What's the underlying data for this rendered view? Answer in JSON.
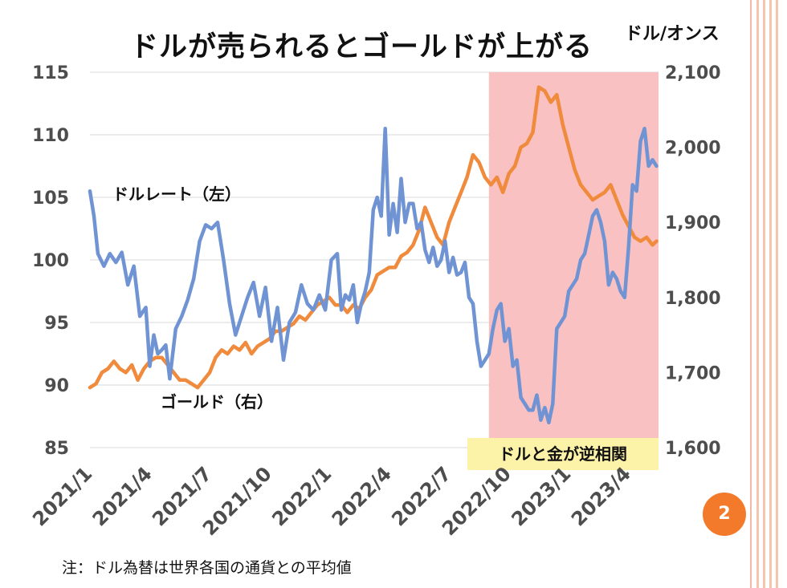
{
  "slide": {
    "title": "ドルが売られるとゴールドが上がる",
    "page_number": "2",
    "footnote": "注：ドル為替は世界各国の通貨との平均値"
  },
  "colors": {
    "dollar": "#7094d3",
    "gold": "#f08a3c",
    "shade": "#f9c1c1",
    "shade_label_bg": "#fdf3a8",
    "badge": "#f47a2b"
  },
  "chart_data": {
    "type": "line",
    "title": "ドルが売られるとゴールドが上がる",
    "y_left": {
      "lim": [
        85,
        115
      ],
      "ticks": [
        "85",
        "90",
        "95",
        "100",
        "105",
        "110",
        "115"
      ]
    },
    "y_right": {
      "label": "ドル/オンス",
      "lim": [
        1600,
        2100
      ],
      "ticks": [
        "1,600",
        "1,700",
        "1,800",
        "1,900",
        "2,000",
        "2,100"
      ]
    },
    "x_ticks": [
      "2021/1",
      "2021/4",
      "2021/7",
      "2021/10",
      "2022/1",
      "2022/4",
      "2022/7",
      "2022/10",
      "2023/1",
      "2023/4"
    ],
    "grid": true,
    "shaded_region": {
      "x_start": "2022/9",
      "x_end": "2023/5",
      "label": "ドルと金が逆相関"
    },
    "annotations": {
      "dollar": "ドルレート（左）",
      "gold": "ゴールド（右）"
    },
    "series": [
      {
        "name": "ドルレート（左）",
        "axis": "left",
        "x": [
          0,
          0.2,
          0.4,
          0.7,
          1.0,
          1.3,
          1.6,
          1.9,
          2.2,
          2.5,
          2.8,
          3.0,
          3.2,
          3.4,
          3.6,
          3.8,
          4.0,
          4.3,
          4.6,
          4.9,
          5.2,
          5.5,
          5.8,
          6.1,
          6.4,
          6.7,
          7.0,
          7.3,
          7.6,
          7.9,
          8.2,
          8.5,
          8.8,
          9.1,
          9.4,
          9.7,
          10.0,
          10.3,
          10.6,
          10.9,
          11.2,
          11.5,
          11.8,
          12.1,
          12.4,
          12.6,
          12.8,
          13.0,
          13.2,
          13.4,
          13.6,
          13.8,
          14.0,
          14.2,
          14.4,
          14.6,
          14.8,
          15.0,
          15.2,
          15.4,
          15.6,
          15.8,
          16.0,
          16.2,
          16.4,
          16.6,
          16.8,
          17.0,
          17.2,
          17.4,
          17.6,
          17.8,
          18.0,
          18.2,
          18.4,
          18.6,
          18.8,
          19.0,
          19.2,
          19.4,
          19.6,
          19.8,
          20.0,
          20.2,
          20.4,
          20.6,
          20.8,
          21.0,
          21.2,
          21.4,
          21.6,
          21.8,
          22.0,
          22.2,
          22.4,
          22.6,
          22.8,
          23.0,
          23.2,
          23.4,
          23.6,
          23.8,
          24.0,
          24.2,
          24.4,
          24.6,
          24.8,
          25.0,
          25.2,
          25.4,
          25.6,
          25.8,
          26.0,
          26.2,
          26.4,
          26.6,
          26.8,
          27.0,
          27.2,
          27.4,
          27.6,
          27.8,
          28.0,
          28.2,
          28.4
        ],
        "values": [
          105.5,
          103.5,
          100.5,
          99.5,
          100.5,
          99.8,
          100.6,
          98.0,
          99.5,
          95.5,
          96.2,
          91.5,
          94.0,
          92.5,
          92.8,
          93.2,
          90.5,
          94.5,
          95.5,
          96.8,
          98.5,
          101.5,
          102.8,
          102.5,
          103.0,
          100.0,
          96.5,
          94.0,
          95.5,
          97.0,
          98.2,
          95.5,
          97.8,
          93.5,
          96.2,
          92.0,
          95.0,
          95.8,
          98.0,
          96.5,
          96.0,
          97.2,
          96.0,
          100.0,
          100.5,
          96.0,
          97.2,
          96.8,
          98.0,
          95.0,
          96.5,
          97.5,
          99.0,
          104.0,
          105.0,
          103.5,
          110.5,
          102.0,
          104.5,
          102.2,
          106.5,
          103.0,
          104.5,
          104.5,
          102.5,
          103.0,
          100.8,
          99.8,
          101.0,
          99.5,
          100.0,
          101.5,
          99.0,
          100.2,
          98.8,
          99.0,
          99.8,
          97.0,
          96.5,
          93.5,
          91.5,
          92.0,
          92.5,
          94.5,
          96.0,
          96.5,
          93.5,
          94.5,
          91.5,
          92.0,
          89.0,
          88.5,
          88.0,
          88.0,
          89.2,
          87.2,
          88.2,
          87.0,
          88.5,
          94.5,
          95.0,
          95.5,
          97.5,
          98.0,
          98.5,
          100.0,
          100.5,
          102.0,
          103.5,
          104.0,
          103.0,
          101.5,
          98.0,
          99.0,
          98.5,
          97.5,
          97.0,
          101.0,
          106.0,
          105.5,
          109.5,
          110.5,
          107.5,
          108.0,
          107.5
        ]
      },
      {
        "name": "ゴールド（右）",
        "axis": "right",
        "x": [
          0,
          0.3,
          0.6,
          0.9,
          1.2,
          1.5,
          1.8,
          2.1,
          2.4,
          2.7,
          3.0,
          3.3,
          3.6,
          3.9,
          4.2,
          4.5,
          4.8,
          5.1,
          5.4,
          5.7,
          6.0,
          6.3,
          6.6,
          6.9,
          7.2,
          7.5,
          7.8,
          8.1,
          8.4,
          8.7,
          9.0,
          9.3,
          9.6,
          9.9,
          10.2,
          10.5,
          10.8,
          11.1,
          11.4,
          11.7,
          12.0,
          12.3,
          12.6,
          12.9,
          13.2,
          13.5,
          13.8,
          14.1,
          14.4,
          14.7,
          15.0,
          15.3,
          15.6,
          15.9,
          16.2,
          16.5,
          16.8,
          17.1,
          17.4,
          17.7,
          18.0,
          18.3,
          18.6,
          18.9,
          19.2,
          19.5,
          19.8,
          20.1,
          20.4,
          20.7,
          21.0,
          21.3,
          21.6,
          21.9,
          22.2,
          22.5,
          22.8,
          23.1,
          23.4,
          23.7,
          24.0,
          24.3,
          24.6,
          24.9,
          25.2,
          25.5,
          25.8,
          26.1,
          26.4,
          26.7,
          27.0,
          27.3,
          27.6,
          27.9,
          28.2,
          28.4
        ],
        "values": [
          1680,
          1685,
          1700,
          1705,
          1715,
          1705,
          1700,
          1710,
          1690,
          1705,
          1715,
          1720,
          1720,
          1710,
          1700,
          1690,
          1690,
          1685,
          1680,
          1690,
          1700,
          1720,
          1730,
          1725,
          1735,
          1730,
          1740,
          1725,
          1735,
          1740,
          1745,
          1755,
          1755,
          1760,
          1765,
          1775,
          1770,
          1780,
          1790,
          1795,
          1800,
          1790,
          1790,
          1780,
          1790,
          1785,
          1800,
          1810,
          1830,
          1835,
          1840,
          1840,
          1855,
          1860,
          1870,
          1890,
          1920,
          1900,
          1880,
          1870,
          1900,
          1920,
          1940,
          1960,
          1990,
          1980,
          1960,
          1950,
          1960,
          1940,
          1965,
          1975,
          2000,
          2005,
          2020,
          2080,
          2075,
          2060,
          2070,
          2030,
          2000,
          1970,
          1950,
          1940,
          1930,
          1935,
          1940,
          1950,
          1930,
          1910,
          1895,
          1880,
          1875,
          1880,
          1870,
          1875
        ]
      }
    ]
  }
}
